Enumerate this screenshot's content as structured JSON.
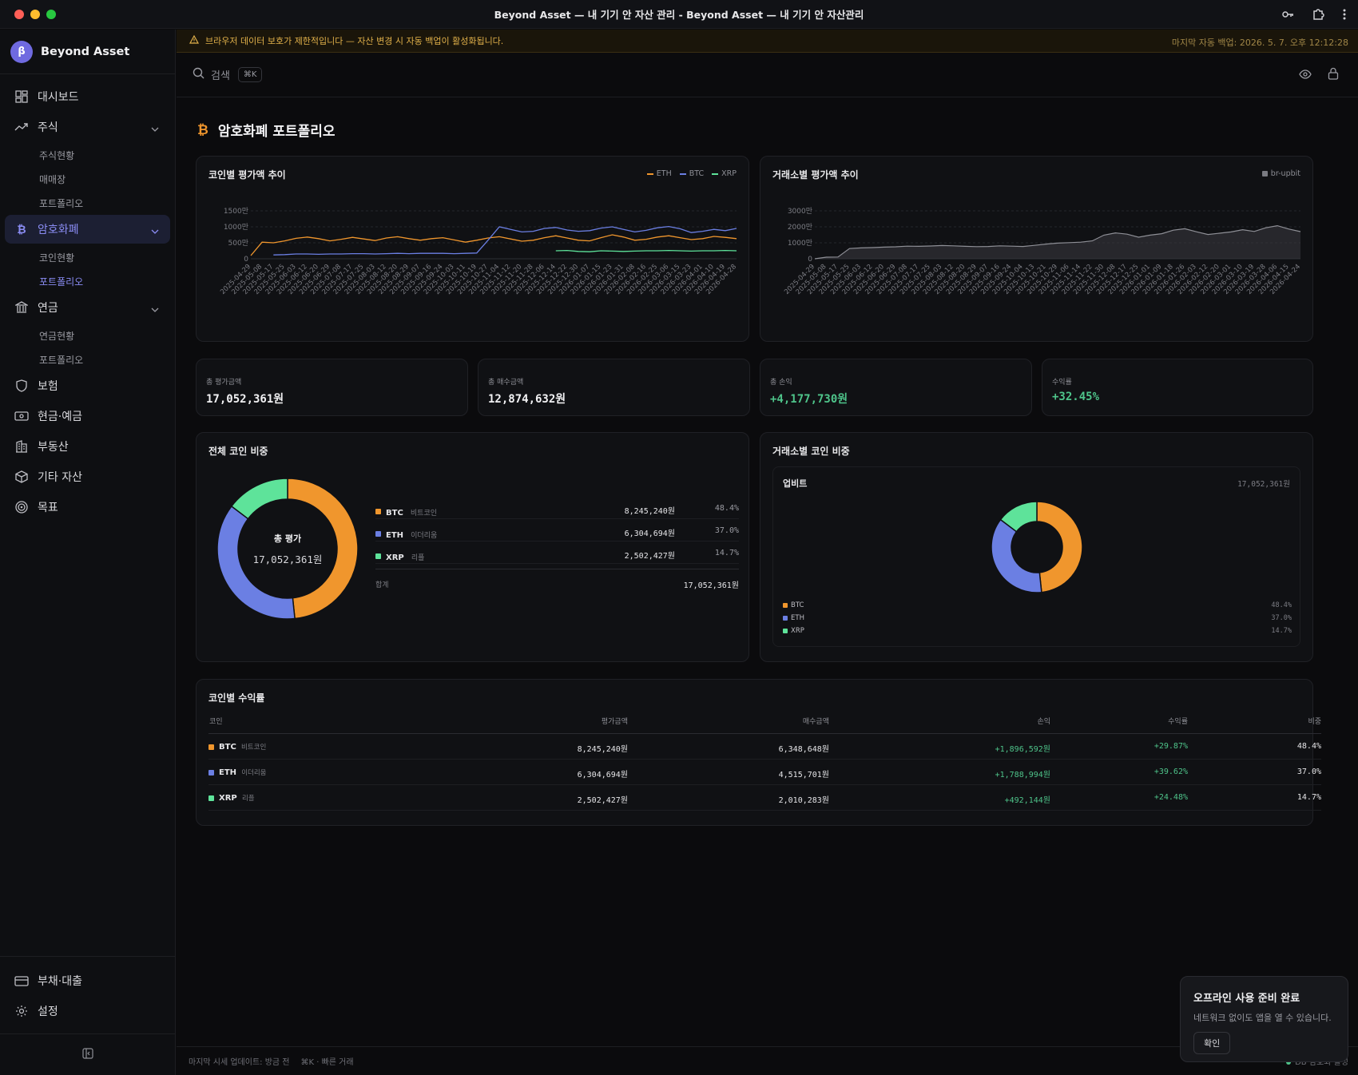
{
  "window": {
    "title": "Beyond Asset — 내 기기 안 자산 관리 - Beyond Asset — 내 기기 안 자산관리"
  },
  "sidebar": {
    "brand": "Beyond Asset",
    "brand_logo": "β",
    "items": [
      {
        "label": "대시보드",
        "icon": "dashboard-icon"
      },
      {
        "label": "주식",
        "icon": "trending-up-icon"
      },
      {
        "label": "주식현황"
      },
      {
        "label": "매매장"
      },
      {
        "label": "포트폴리오"
      },
      {
        "label": "암호화폐",
        "icon": "bitcoin-icon"
      },
      {
        "label": "코인현황"
      },
      {
        "label": "포트폴리오"
      },
      {
        "label": "연금",
        "icon": "bank-icon"
      },
      {
        "label": "연금현황"
      },
      {
        "label": "포트폴리오"
      },
      {
        "label": "보험",
        "icon": "shield-icon"
      },
      {
        "label": "현금·예금",
        "icon": "cash-icon"
      },
      {
        "label": "부동산",
        "icon": "building-icon"
      },
      {
        "label": "기타 자산",
        "icon": "box-icon"
      },
      {
        "label": "목표",
        "icon": "target-icon"
      }
    ],
    "bottom_items": [
      {
        "label": "부채·대출",
        "icon": "credit-card-icon"
      },
      {
        "label": "설정",
        "icon": "gear-icon"
      }
    ]
  },
  "banner": {
    "message": "브라우저 데이터 보호가 제한적입니다 — 자산 변경 시 자동 백업이 활성화됩니다.",
    "last_backup": "마지막 자동 백업: 2026. 5. 7. 오후 12:12:28"
  },
  "topbar": {
    "search_label": "검색",
    "shortcut": "⌘K"
  },
  "page": {
    "title": "암호화폐 포트폴리오"
  },
  "trend_chart": {
    "title": "코인별 평가액 추이",
    "legend": [
      "ETH",
      "BTC",
      "XRP"
    ]
  },
  "exchange_chart": {
    "title": "거래소별 평가액 추이",
    "legend": [
      "br-upbit"
    ]
  },
  "stats": [
    {
      "label": "총 평가금액",
      "value": "17,052,361원"
    },
    {
      "label": "총 매수금액",
      "value": "12,874,632원"
    },
    {
      "label": "총 손익",
      "value": "+4,177,730원"
    },
    {
      "label": "수익률",
      "value": "+32.45%"
    }
  ],
  "allocation": {
    "title": "전체 코인 비중",
    "center_label": "총 평가",
    "center_value": "17,052,361원",
    "rows": [
      {
        "symbol": "BTC",
        "name": "비트코인",
        "value": "8,245,240원",
        "pct": "48.4%"
      },
      {
        "symbol": "ETH",
        "name": "이더리움",
        "value": "6,304,694원",
        "pct": "37.0%"
      },
      {
        "symbol": "XRP",
        "name": "리플",
        "value": "2,502,427원",
        "pct": "14.7%"
      }
    ],
    "total_label": "합계",
    "total_value": "17,052,361원"
  },
  "exchange_allocation": {
    "title": "거래소별 코인 비중",
    "exchange_name": "업비트",
    "exchange_total": "17,052,361원",
    "rows": [
      {
        "symbol": "BTC",
        "pct": "48.4%"
      },
      {
        "symbol": "ETH",
        "pct": "37.0%"
      },
      {
        "symbol": "XRP",
        "pct": "14.7%"
      }
    ]
  },
  "returns_table": {
    "title": "코인별 수익률",
    "headers": [
      "코인",
      "평가금액",
      "매수금액",
      "손익",
      "수익률",
      "비중"
    ],
    "rows": [
      {
        "symbol": "BTC",
        "name": "비트코인",
        "value": "8,245,240원",
        "cost": "6,348,648원",
        "pnl": "+1,896,592원",
        "ret": "+29.87%",
        "weight": "48.4%"
      },
      {
        "symbol": "ETH",
        "name": "이더리움",
        "value": "6,304,694원",
        "cost": "4,515,701원",
        "pnl": "+1,788,994원",
        "ret": "+39.62%",
        "weight": "37.0%"
      },
      {
        "symbol": "XRP",
        "name": "리플",
        "value": "2,502,427원",
        "cost": "2,010,283원",
        "pnl": "+492,144원",
        "ret": "+24.48%",
        "weight": "14.7%"
      }
    ]
  },
  "footer": {
    "last_update": "마지막 시세 업데이트: 방금 전",
    "shortcut_hint": "⌘K · 빠른 거래",
    "right_status": "DB 암호화 활성"
  },
  "toast": {
    "title": "오프라인 사용 준비 완료",
    "message": "네트워크 없이도 앱을 열 수 있습니다.",
    "button": "확인"
  },
  "colors": {
    "btc": "#f0962d",
    "eth": "#6b7fe3",
    "xrp": "#5ee39a",
    "accent": "#8a8cf3",
    "positive": "#4ec48a"
  },
  "chart_data": [
    {
      "type": "line",
      "title": "코인별 평가액 추이",
      "yticks": [
        "1500만",
        "1000만",
        "500만",
        "0"
      ],
      "ylim": [
        0,
        15000000
      ],
      "x": [
        "2025-04-29",
        "2025-05-08",
        "2025-05-17",
        "2025-05-25",
        "2025-06-03",
        "2025-06-12",
        "2025-06-20",
        "2025-06-29",
        "2025-07-08",
        "2025-07-17",
        "2025-07-25",
        "2025-08-03",
        "2025-08-12",
        "2025-08-20",
        "2025-08-29",
        "2025-09-07",
        "2025-09-16",
        "2025-09-24",
        "2025-10-03",
        "2025-10-11",
        "2025-10-19",
        "2025-10-27",
        "2025-11-04",
        "2025-11-12",
        "2025-11-20",
        "2025-11-28",
        "2025-12-06",
        "2025-12-14",
        "2025-12-22",
        "2025-12-30",
        "2026-01-07",
        "2026-01-15",
        "2026-01-23",
        "2026-01-31",
        "2026-02-08",
        "2026-02-16",
        "2026-02-25",
        "2026-03-06",
        "2026-03-15",
        "2026-03-23",
        "2026-04-01",
        "2026-04-10",
        "2026-04-19",
        "2026-04-28"
      ],
      "series": [
        {
          "name": "ETH",
          "values": [
            1000000,
            5200000,
            5000000,
            5600000,
            6400000,
            6800000,
            6300000,
            5600000,
            6100000,
            6700000,
            6200000,
            5700000,
            6500000,
            6900000,
            6300000,
            5800000,
            6300000,
            6600000,
            5900000,
            5200000,
            5800000,
            6500000,
            6900000,
            6200000,
            5500000,
            5800000,
            6600000,
            7200000,
            6500000,
            5800000,
            5600000,
            6600000,
            7500000,
            6800000,
            5800000,
            6100000,
            6800000,
            7200000,
            6600000,
            6000000,
            6300000,
            7000000,
            6700000,
            6300000
          ]
        },
        {
          "name": "BTC",
          "values": [
            null,
            null,
            1200000,
            1300000,
            1500000,
            1500000,
            1400000,
            1500000,
            1500000,
            1600000,
            1600000,
            1500000,
            1600000,
            1700000,
            1600000,
            1700000,
            1700000,
            1700000,
            1600000,
            1700000,
            1800000,
            5800000,
            10000000,
            9200000,
            8400000,
            8600000,
            9500000,
            9800000,
            9000000,
            8600000,
            8800000,
            9600000,
            10000000,
            9200000,
            8400000,
            8900000,
            9700000,
            10100000,
            9400000,
            8200000,
            8600000,
            9200000,
            8800000,
            9500000
          ]
        },
        {
          "name": "XRP",
          "values": [
            null,
            null,
            null,
            null,
            null,
            null,
            null,
            null,
            null,
            null,
            null,
            null,
            null,
            null,
            null,
            null,
            null,
            null,
            null,
            null,
            null,
            null,
            null,
            null,
            null,
            null,
            null,
            2500000,
            2600000,
            2300000,
            2200000,
            2500000,
            2400000,
            2300000,
            2400000,
            2500000,
            2500000,
            2600000,
            2500000,
            2400000,
            2500000,
            2500000,
            2600000,
            2500000
          ]
        }
      ]
    },
    {
      "type": "area",
      "title": "거래소별 평가액 추이",
      "yticks": [
        "3000만",
        "2000만",
        "1000만",
        "0"
      ],
      "ylim": [
        0,
        30000000
      ],
      "x": [
        "2025-04-29",
        "2025-05-08",
        "2025-05-17",
        "2025-05-25",
        "2025-06-03",
        "2025-06-12",
        "2025-06-20",
        "2025-06-29",
        "2025-07-08",
        "2025-07-17",
        "2025-07-25",
        "2025-08-03",
        "2025-08-12",
        "2025-08-20",
        "2025-08-29",
        "2025-09-07",
        "2025-09-16",
        "2025-09-24",
        "2025-10-04",
        "2025-10-13",
        "2025-10-21",
        "2025-10-29",
        "2025-11-06",
        "2025-11-14",
        "2025-11-22",
        "2025-11-30",
        "2025-12-08",
        "2025-12-17",
        "2025-12-25",
        "2026-01-01",
        "2026-01-09",
        "2026-01-18",
        "2026-01-26",
        "2026-02-03",
        "2026-02-12",
        "2026-02-20",
        "2026-03-01",
        "2026-03-10",
        "2026-03-19",
        "2026-03-28",
        "2026-04-06",
        "2026-04-15",
        "2026-04-24"
      ],
      "series": [
        {
          "name": "br-upbit",
          "values": [
            0,
            1000000,
            1100000,
            6400000,
            6800000,
            7000000,
            7300000,
            7500000,
            7900000,
            7800000,
            8000000,
            8300000,
            8100000,
            7800000,
            7600000,
            7700000,
            8100000,
            7900000,
            7700000,
            8400000,
            9200000,
            9800000,
            10100000,
            10400000,
            11200000,
            14800000,
            16200000,
            15400000,
            13500000,
            14800000,
            15700000,
            17900000,
            18800000,
            16900000,
            15200000,
            16000000,
            16800000,
            18200000,
            17100000,
            19400000,
            20700000,
            18600000,
            17000000
          ]
        }
      ]
    },
    {
      "type": "pie",
      "title": "전체 코인 비중",
      "categories": [
        "BTC",
        "ETH",
        "XRP"
      ],
      "values": [
        48.4,
        37.0,
        14.7
      ]
    },
    {
      "type": "pie",
      "title": "거래소별 코인 비중",
      "categories": [
        "BTC",
        "ETH",
        "XRP"
      ],
      "values": [
        48.4,
        37.0,
        14.7
      ]
    }
  ]
}
